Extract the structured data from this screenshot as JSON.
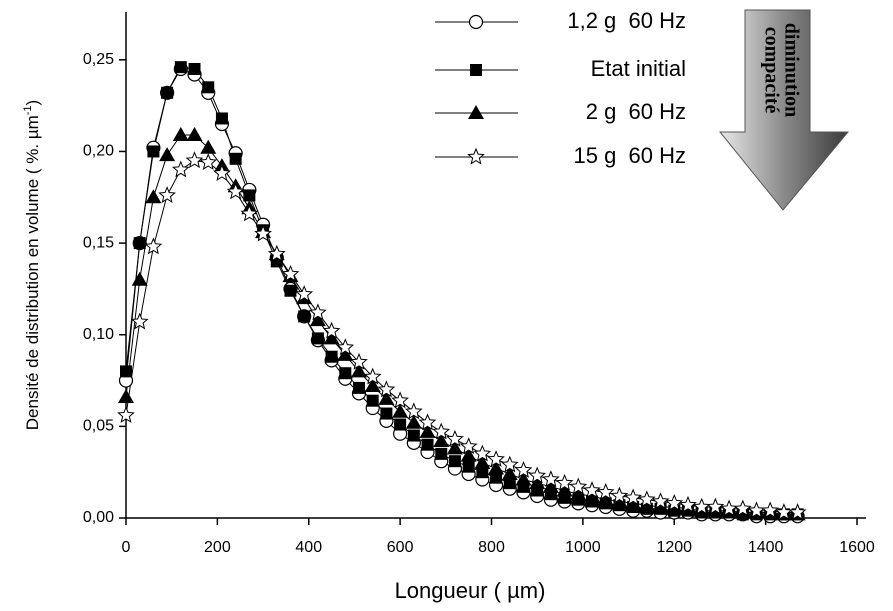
{
  "chart_data": {
    "type": "line",
    "x_label": "Longueur    ( µm)",
    "y_label": "Densité de distribution en volume   ( %. µm",
    "y_label_sup": "-1",
    "y_label_end": ")",
    "annotations": [
      "diminution",
      "compacité"
    ],
    "x": [
      0,
      30,
      60,
      90,
      120,
      150,
      180,
      210,
      240,
      270,
      300,
      330,
      360,
      390,
      420,
      450,
      480,
      510,
      540,
      570,
      600,
      630,
      660,
      690,
      720,
      750,
      780,
      810,
      840,
      870,
      900,
      930,
      960,
      990,
      1020,
      1050,
      1080,
      1110,
      1140,
      1170,
      1200,
      1230,
      1260,
      1290,
      1320,
      1350,
      1380,
      1410,
      1440,
      1470
    ],
    "xlim": [
      0,
      1600
    ],
    "xticks": [
      0,
      200,
      400,
      600,
      800,
      1000,
      1200,
      1400,
      1600
    ],
    "ylim": [
      0,
      0.275
    ],
    "yticks": [
      {
        "value": 0,
        "label": "0,00"
      },
      {
        "value": 0.05,
        "label": "0,05"
      },
      {
        "value": 0.1,
        "label": "0,10"
      },
      {
        "value": 0.15,
        "label": "0,15"
      },
      {
        "value": 0.2,
        "label": "0,20"
      },
      {
        "value": 0.25,
        "label": "0,25"
      }
    ],
    "series": [
      {
        "name": "1,2 g  60 Hz",
        "color": "#000000",
        "marker": "circle-open",
        "values": [
          0.075,
          0.15,
          0.202,
          0.232,
          0.245,
          0.242,
          0.232,
          0.215,
          0.199,
          0.179,
          0.16,
          0.142,
          0.125,
          0.11,
          0.097,
          0.086,
          0.076,
          0.068,
          0.06,
          0.053,
          0.046,
          0.041,
          0.036,
          0.031,
          0.027,
          0.024,
          0.021,
          0.018,
          0.016,
          0.014,
          0.012,
          0.01,
          0.009,
          0.008,
          0.007,
          0.006,
          0.005,
          0.004,
          0.004,
          0.003,
          0.003,
          0.003,
          0.002,
          0.002,
          0.002,
          0.002,
          0.001,
          0.001,
          0.001,
          0.001
        ]
      },
      {
        "name": "Etat initial",
        "color": "#000000",
        "marker": "square",
        "values": [
          0.08,
          0.15,
          0.2,
          0.232,
          0.246,
          0.245,
          0.235,
          0.218,
          0.196,
          0.176,
          0.157,
          0.14,
          0.124,
          0.11,
          0.098,
          0.088,
          0.079,
          0.071,
          0.064,
          0.057,
          0.051,
          0.045,
          0.04,
          0.035,
          0.031,
          0.028,
          0.025,
          0.022,
          0.019,
          0.017,
          0.015,
          0.013,
          0.011,
          0.01,
          0.009,
          0.008,
          0.007,
          0.006,
          0.005,
          0.005,
          0.004,
          0.004,
          0.003,
          0.003,
          0.003,
          0.002,
          0.002,
          0.002,
          0.002,
          0.002
        ]
      },
      {
        "name": "2 g  60 Hz",
        "color": "#000000",
        "marker": "triangle",
        "values": [
          0.066,
          0.13,
          0.175,
          0.198,
          0.209,
          0.209,
          0.202,
          0.192,
          0.181,
          0.169,
          0.156,
          0.144,
          0.132,
          0.12,
          0.108,
          0.098,
          0.089,
          0.08,
          0.072,
          0.065,
          0.058,
          0.052,
          0.047,
          0.042,
          0.038,
          0.034,
          0.03,
          0.027,
          0.024,
          0.021,
          0.019,
          0.017,
          0.015,
          0.013,
          0.012,
          0.01,
          0.009,
          0.008,
          0.007,
          0.006,
          0.006,
          0.005,
          0.004,
          0.004,
          0.004,
          0.003,
          0.003,
          0.003,
          0.002,
          0.002
        ]
      },
      {
        "name": "15 g  60 Hz",
        "color": "#000000",
        "marker": "star-open",
        "values": [
          0.056,
          0.107,
          0.148,
          0.176,
          0.19,
          0.195,
          0.194,
          0.188,
          0.178,
          0.166,
          0.155,
          0.144,
          0.133,
          0.122,
          0.112,
          0.102,
          0.093,
          0.085,
          0.077,
          0.07,
          0.064,
          0.058,
          0.052,
          0.047,
          0.043,
          0.039,
          0.035,
          0.032,
          0.029,
          0.026,
          0.023,
          0.021,
          0.019,
          0.017,
          0.015,
          0.014,
          0.012,
          0.011,
          0.01,
          0.009,
          0.008,
          0.007,
          0.006,
          0.006,
          0.005,
          0.005,
          0.004,
          0.004,
          0.003,
          0.003
        ]
      }
    ]
  }
}
